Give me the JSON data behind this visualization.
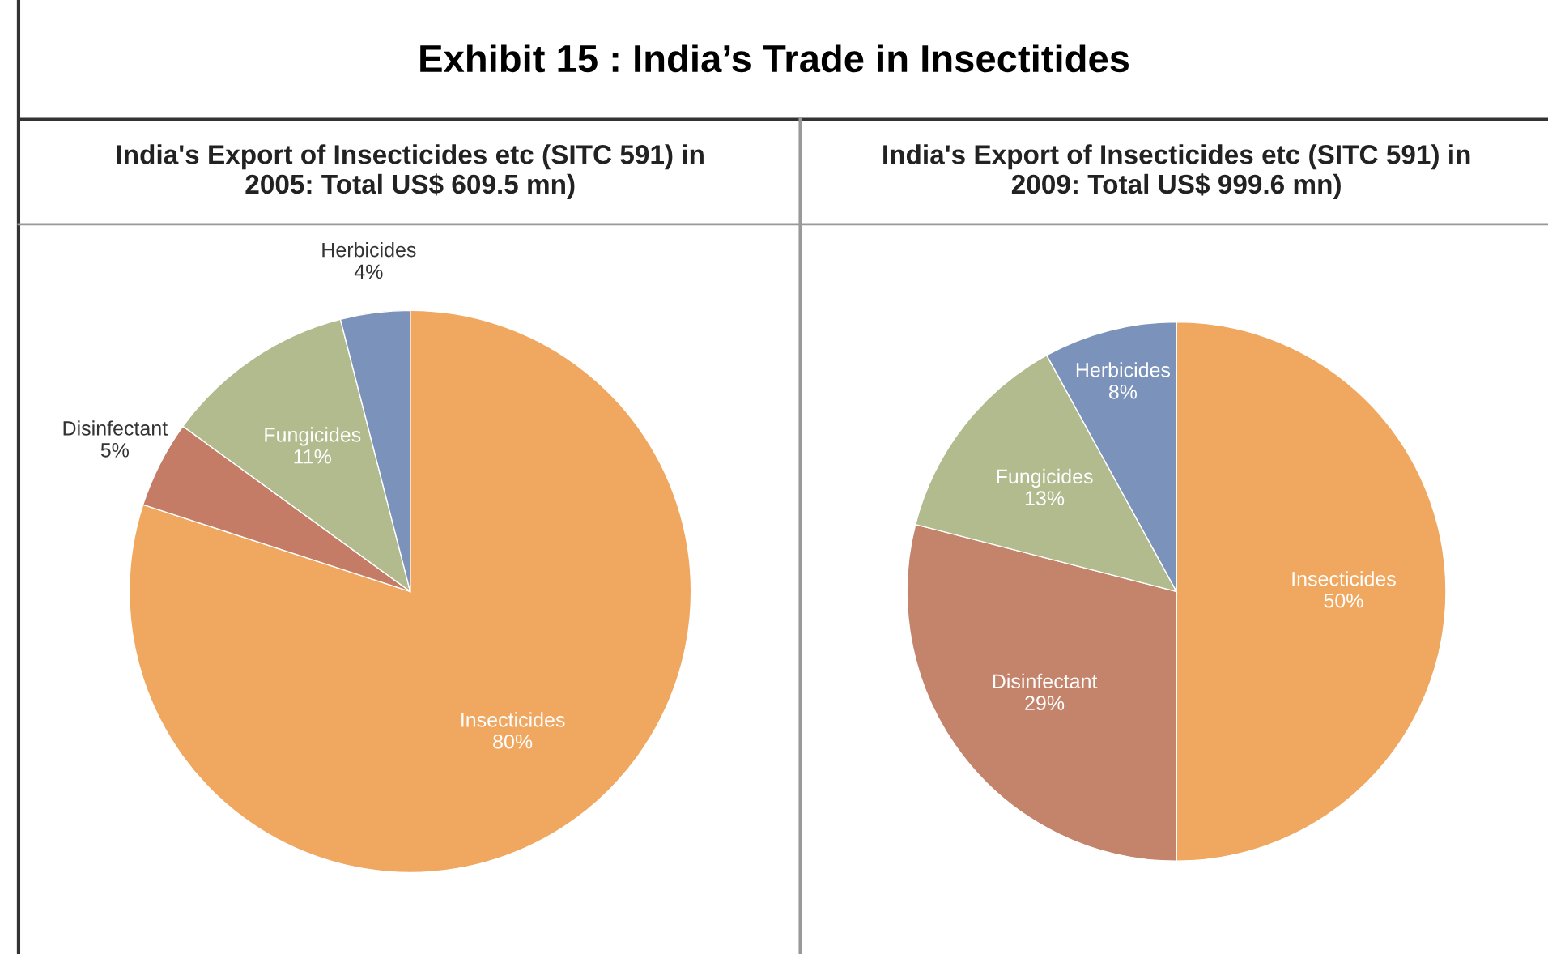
{
  "chart_data": [
    {
      "type": "pie",
      "title": "India's Export of Insecticides etc (SITC 591) in\n2005: Total US$ 609.5 mn)",
      "annotations": [
        "Exhibit 15 : India’s Trade in Insectitides"
      ],
      "categories": [
        "Insecticides",
        "Disinfectant",
        "Fungicides",
        "Herbicides"
      ],
      "values": [
        80,
        5,
        11,
        4
      ],
      "value_labels": [
        "80%",
        "5%",
        "11%",
        "4%"
      ],
      "colors": [
        "#f0a860",
        "#c47c66",
        "#b1bb8d",
        "#7b93bb"
      ]
    },
    {
      "type": "pie",
      "title": "India's Export of Insecticides etc (SITC 591) in\n2009: Total US$ 999.6 mn)",
      "categories": [
        "Insecticides",
        "Disinfectant",
        "Fungicides",
        "Herbicides"
      ],
      "values": [
        50,
        29,
        13,
        8
      ],
      "value_labels": [
        "50%",
        "29%",
        "13%",
        "8%"
      ],
      "colors": [
        "#f0a860",
        "#c4846c",
        "#b1bb8d",
        "#7b93bb"
      ]
    }
  ]
}
